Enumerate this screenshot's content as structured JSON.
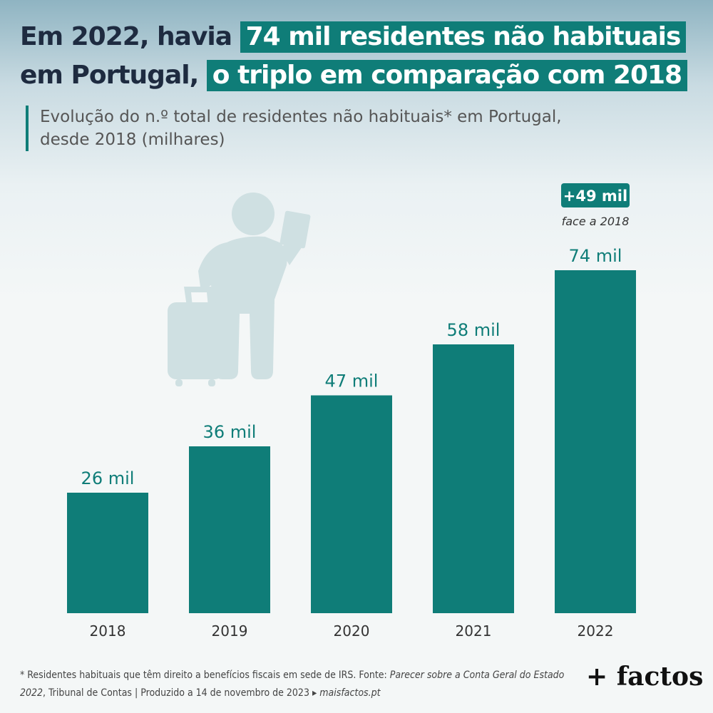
{
  "title": {
    "line1_dark": "Em 2022, havia",
    "line1_highlight": "74 mil residentes não habituais",
    "line2_dark": "em Portugal,",
    "line2_highlight": "o triplo em comparação com 2018"
  },
  "subtitle": {
    "line1": "Evolução do n.º total de residentes não habituais* em Portugal,",
    "line2": "desde 2018 (milhares)"
  },
  "chart_data": {
    "type": "bar",
    "categories": [
      "2018",
      "2019",
      "2020",
      "2021",
      "2022"
    ],
    "values": [
      26,
      36,
      47,
      58,
      74
    ],
    "value_labels": [
      "26 mil",
      "36 mil",
      "47 mil",
      "58 mil",
      "74 mil"
    ],
    "unit": "milhares",
    "ylim": [
      0,
      80
    ],
    "grid": false,
    "bar_color": "#0f7d78",
    "annotation": {
      "badge": "+49 mil",
      "note": "face a 2018",
      "category": "2022"
    }
  },
  "footnote": {
    "line1": "* Residentes habituais que têm direito a benefícios fiscais em sede de IRS. Fonte:",
    "source_italic": "Parecer sobre a Conta Geral do Estado",
    "line2_italic_start": "2022",
    "line2_rest": ", Tribunal de Contas | Produzido a 14 de novembro de 2023 ▸",
    "site": "maisfactos.pt"
  },
  "brand": "+ factos",
  "colors": {
    "accent": "#0f7d78",
    "title_dark": "#1e2b40",
    "illustration": "#cfe0e2"
  }
}
